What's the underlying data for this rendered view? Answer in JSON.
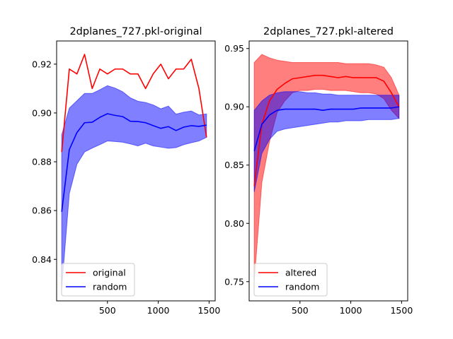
{
  "chart_data": [
    {
      "type": "line",
      "title": "2dplanes_727.pkl-original",
      "xlabel": "",
      "ylabel": "",
      "xlim": [
        0,
        1560
      ],
      "ylim": [
        0.823,
        0.9295
      ],
      "xticks": [
        500,
        1000,
        1500
      ],
      "yticks": [
        0.84,
        0.86,
        0.88,
        0.9,
        0.92
      ],
      "ytick_labels": [
        "0.84",
        "0.86",
        "0.88",
        "0.90",
        "0.92"
      ],
      "xtick_labels": [
        "500",
        "1000",
        "1500"
      ],
      "grid": false,
      "legend_position": "lower-left",
      "x": [
        50,
        125,
        200,
        275,
        350,
        425,
        500,
        575,
        650,
        725,
        800,
        875,
        950,
        1025,
        1100,
        1175,
        1250,
        1325,
        1400,
        1475
      ],
      "series": [
        {
          "name": "original",
          "color": "#ff0000",
          "values": [
            0.884,
            0.918,
            0.916,
            0.924,
            0.91,
            0.918,
            0.916,
            0.918,
            0.918,
            0.916,
            0.916,
            0.91,
            0.916,
            0.92,
            0.914,
            0.918,
            0.918,
            0.922,
            0.91,
            0.89
          ]
        },
        {
          "name": "random",
          "color": "#0000ff",
          "values": [
            0.8595,
            0.885,
            0.892,
            0.896,
            0.8962,
            0.8982,
            0.8997,
            0.899,
            0.8985,
            0.8966,
            0.8965,
            0.896,
            0.8948,
            0.8937,
            0.8944,
            0.8928,
            0.8942,
            0.8948,
            0.8945,
            0.895
          ],
          "band_low": [
            0.828,
            0.867,
            0.879,
            0.884,
            0.8856,
            0.887,
            0.8885,
            0.8883,
            0.888,
            0.8873,
            0.8865,
            0.8876,
            0.8865,
            0.886,
            0.8855,
            0.8858,
            0.887,
            0.8878,
            0.8885,
            0.89
          ],
          "band_high": [
            0.891,
            0.902,
            0.905,
            0.908,
            0.908,
            0.9095,
            0.9112,
            0.9102,
            0.9087,
            0.9062,
            0.9048,
            0.9043,
            0.9033,
            0.9017,
            0.9028,
            0.8995,
            0.9003,
            0.9008,
            0.8992,
            0.8996
          ]
        }
      ]
    },
    {
      "type": "line",
      "title": "2dplanes_727.pkl-altered",
      "xlabel": "",
      "ylabel": "",
      "xlim": [
        0,
        1560
      ],
      "ylim": [
        0.7335,
        0.9565
      ],
      "xticks": [
        500,
        1000,
        1500
      ],
      "yticks": [
        0.75,
        0.8,
        0.85,
        0.9,
        0.95
      ],
      "ytick_labels": [
        "0.75",
        "0.80",
        "0.85",
        "0.90",
        "0.95"
      ],
      "xtick_labels": [
        "500",
        "1000",
        "1500"
      ],
      "grid": false,
      "legend_position": "lower-left",
      "x": [
        50,
        125,
        200,
        275,
        350,
        425,
        500,
        575,
        650,
        725,
        800,
        875,
        950,
        1025,
        1100,
        1175,
        1250,
        1325,
        1400,
        1475
      ],
      "series": [
        {
          "name": "altered",
          "color": "#ff0000",
          "values": [
            0.832,
            0.885,
            0.905,
            0.915,
            0.92,
            0.924,
            0.925,
            0.926,
            0.927,
            0.927,
            0.926,
            0.925,
            0.926,
            0.925,
            0.925,
            0.925,
            0.925,
            0.922,
            0.912,
            0.9
          ],
          "band_low": [
            0.75,
            0.835,
            0.87,
            0.895,
            0.905,
            0.912,
            0.914,
            0.914,
            0.915,
            0.915,
            0.914,
            0.914,
            0.914,
            0.913,
            0.912,
            0.912,
            0.911,
            0.907,
            0.897,
            0.89
          ],
          "band_high": [
            0.938,
            0.945,
            0.942,
            0.94,
            0.939,
            0.938,
            0.938,
            0.938,
            0.938,
            0.938,
            0.938,
            0.938,
            0.937,
            0.937,
            0.937,
            0.937,
            0.936,
            0.934,
            0.925,
            0.91
          ]
        },
        {
          "name": "random",
          "color": "#0000ff",
          "values": [
            0.862,
            0.885,
            0.893,
            0.897,
            0.898,
            0.898,
            0.898,
            0.898,
            0.898,
            0.897,
            0.898,
            0.898,
            0.898,
            0.898,
            0.899,
            0.899,
            0.899,
            0.899,
            0.899,
            0.9
          ],
          "band_low": [
            0.827,
            0.86,
            0.872,
            0.879,
            0.881,
            0.882,
            0.883,
            0.884,
            0.885,
            0.886,
            0.887,
            0.887,
            0.888,
            0.888,
            0.888,
            0.889,
            0.889,
            0.889,
            0.889,
            0.89
          ],
          "band_high": [
            0.897,
            0.905,
            0.91,
            0.912,
            0.913,
            0.913,
            0.913,
            0.912,
            0.912,
            0.911,
            0.911,
            0.91,
            0.91,
            0.91,
            0.91,
            0.91,
            0.91,
            0.91,
            0.91,
            0.91
          ]
        }
      ]
    }
  ]
}
